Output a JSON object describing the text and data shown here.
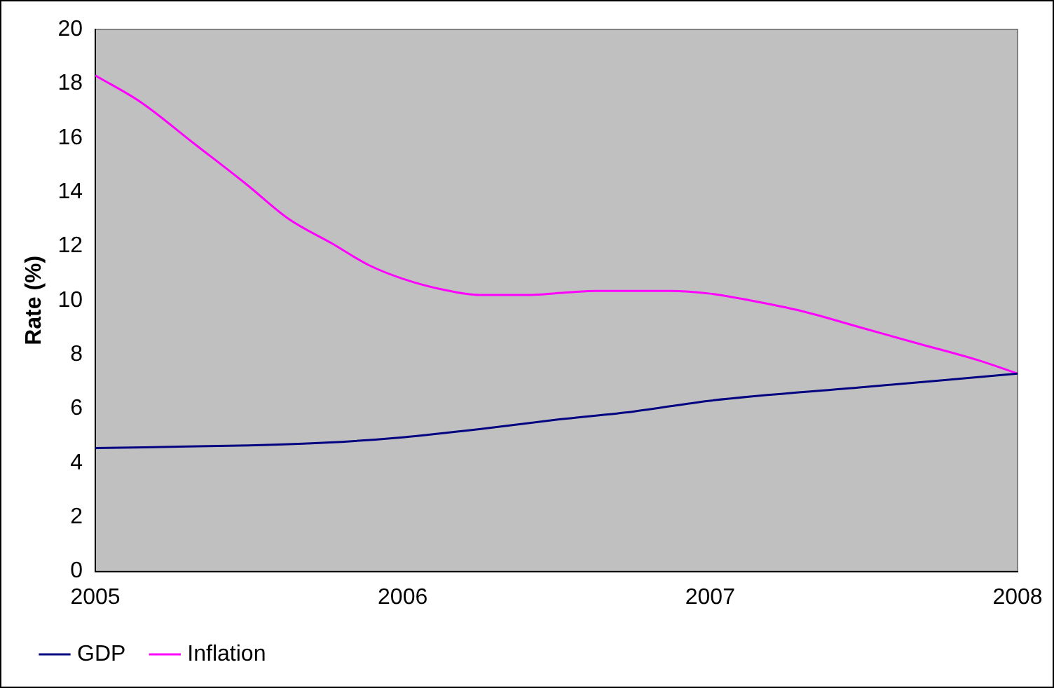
{
  "chart_data": {
    "type": "line",
    "ylabel": "Rate (%)",
    "xlim": [
      2005,
      2008
    ],
    "xticks": [
      2005,
      2006,
      2007,
      2008
    ],
    "ylim": [
      0,
      20
    ],
    "yticks": [
      0,
      2,
      4,
      6,
      8,
      10,
      12,
      14,
      16,
      18,
      20
    ],
    "grid": false,
    "legend": "bottom left",
    "marker": "none",
    "line_style": "solid",
    "series": [
      {
        "name": "GDP",
        "color": "#000080",
        "x": [
          2005,
          2005.5,
          2005.75,
          2006,
          2006.25,
          2006.5,
          2006.75,
          2007,
          2007.5,
          2008
        ],
        "values": [
          4.55,
          4.65,
          4.75,
          4.95,
          5.25,
          5.6,
          5.9,
          6.3,
          6.8,
          7.3
        ]
      },
      {
        "name": "Inflation",
        "color": "#ff00ff",
        "x": [
          2005,
          2005.15,
          2005.32,
          2005.49,
          2005.63,
          2005.77,
          2005.89,
          2006,
          2006.13,
          2006.25,
          2006.4,
          2006.54,
          2006.63,
          2006.87,
          2007,
          2007.13,
          2007.3,
          2007.49,
          2007.68,
          2007.87,
          2008
        ],
        "values": [
          18.3,
          17.3,
          15.8,
          14.3,
          13,
          12.1,
          11.3,
          10.8,
          10.4,
          10.2,
          10.2,
          10.3,
          10.35,
          10.35,
          10.25,
          10,
          9.6,
          9,
          8.4,
          7.8,
          7.3
        ]
      }
    ]
  }
}
